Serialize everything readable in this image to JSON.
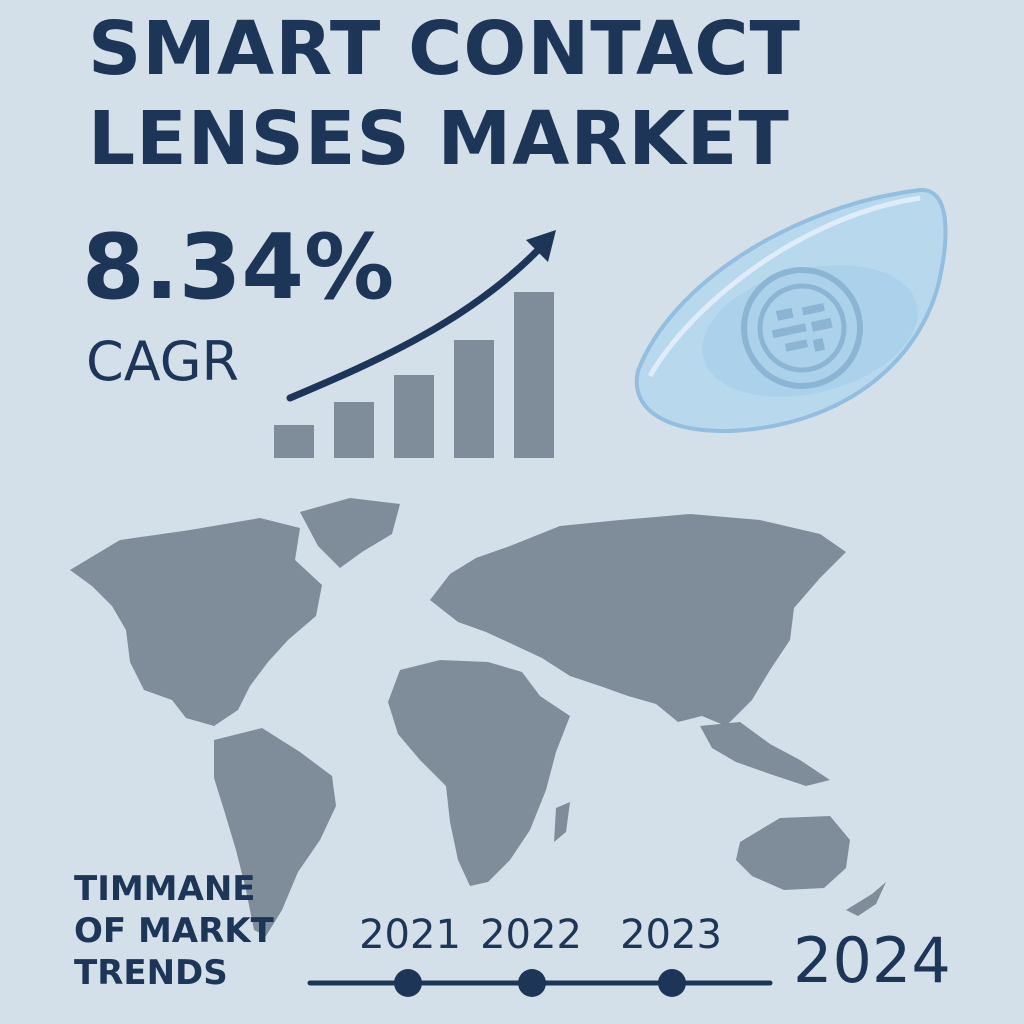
{
  "title": {
    "line1": "SMART CONTACT",
    "line2": "LENSES MARKET"
  },
  "cagr": {
    "value": "8.34%",
    "label": "CAGR"
  },
  "timeline": {
    "title_lines": [
      "TIMMANE",
      "OF MARKT",
      "TRENDS"
    ],
    "years": [
      "2021",
      "2022",
      "2023"
    ],
    "final_year": "2024"
  },
  "colors": {
    "background": "#d3e0ea",
    "primary_text": "#1d3557",
    "graphic_gray": "#7f8c99",
    "lens_blue": "#a7cde8"
  },
  "icons": [
    "growth-arrow-icon",
    "contact-lens-icon",
    "circuit-icon",
    "world-map-icon"
  ]
}
